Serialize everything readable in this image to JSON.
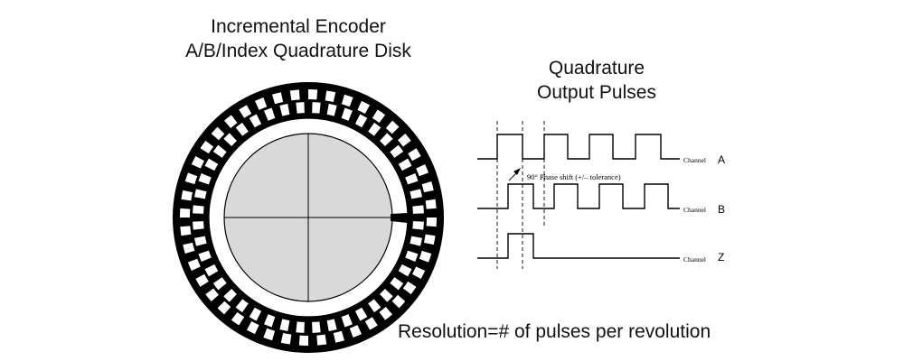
{
  "disk": {
    "title_line1": "Incremental Encoder",
    "title_line2": "A/B/Index Quadrature Disk",
    "outer_track_segments": 44,
    "inner_track_segments": 44,
    "colors": {
      "black": "#000000",
      "white": "#ffffff",
      "hub": "#d9d9d9"
    }
  },
  "pulses": {
    "title_line1": "Quadrature",
    "title_line2": "Output Pulses",
    "phase_label": "90° Phase shift (+/– tolerance)",
    "channels": [
      {
        "small_label": "Channel",
        "name": "A"
      },
      {
        "small_label": "Channel",
        "name": "B"
      },
      {
        "small_label": "Channel",
        "name": "Z"
      }
    ]
  },
  "footer": {
    "text": "Resolution=# of pulses per revolution"
  }
}
